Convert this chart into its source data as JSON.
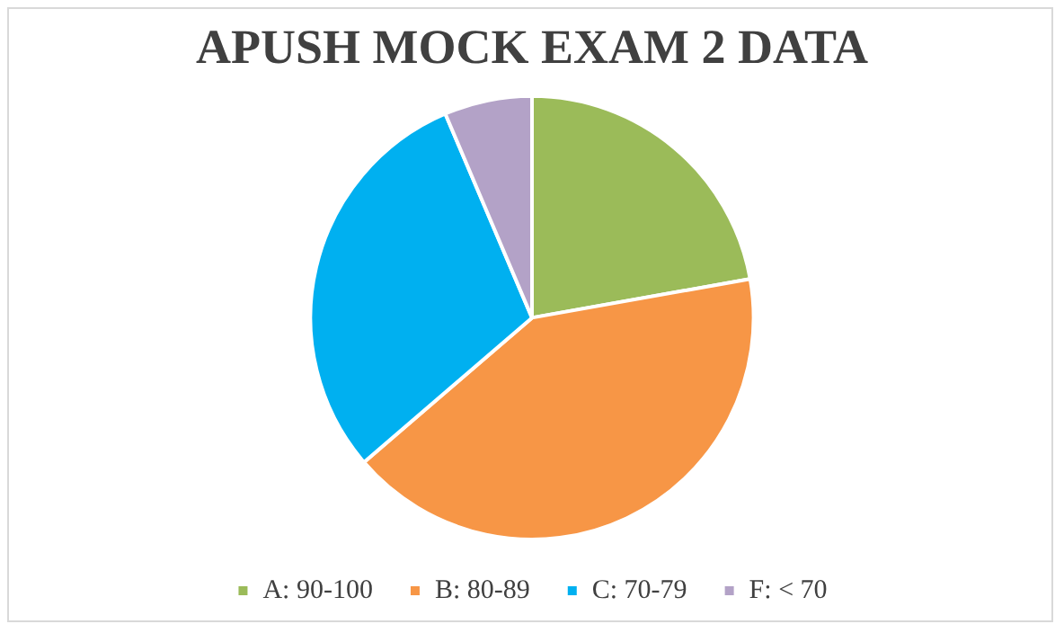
{
  "chart_data": {
    "type": "pie",
    "title": "APUSH MOCK EXAM 2 DATA",
    "categories": [
      "A: 90-100",
      "B: 80-89",
      "C: 70-79",
      "F: < 70"
    ],
    "values": [
      22.2,
      41.5,
      29.9,
      6.4
    ],
    "colors": [
      "#9bbb59",
      "#f79646",
      "#00b0f0",
      "#b3a2c7"
    ],
    "legend": "bottom"
  }
}
